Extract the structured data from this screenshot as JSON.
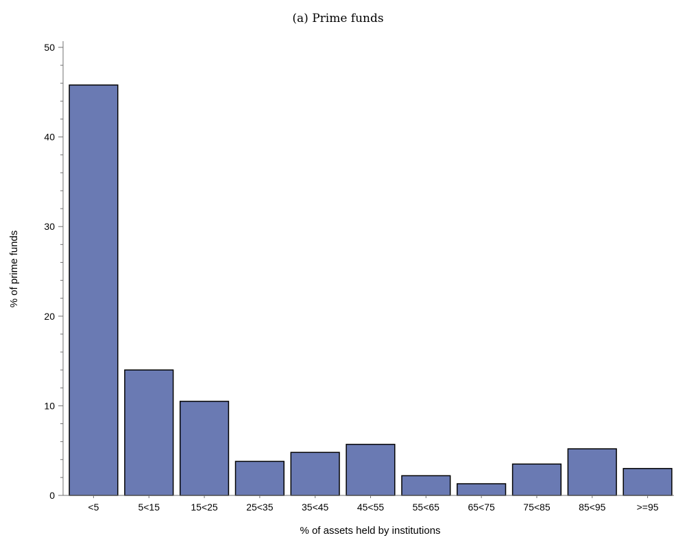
{
  "chart_data": {
    "type": "bar",
    "title": "(a) Prime funds",
    "xlabel": "%  of assets held by institutions",
    "ylabel": "% of prime funds",
    "categories": [
      "<5",
      "5<15",
      "15<25",
      "25<35",
      "35<45",
      "45<55",
      "55<65",
      "65<75",
      "75<85",
      "85<95",
      ">=95"
    ],
    "values": [
      45.8,
      14.0,
      10.5,
      3.8,
      4.8,
      5.7,
      2.2,
      1.3,
      3.5,
      5.2,
      3.0
    ],
    "ylim": [
      0,
      50
    ],
    "yticks": [
      0,
      10,
      20,
      30,
      40,
      50
    ],
    "grid": false,
    "colors": {
      "bar": "#6a7ab3",
      "bar_edge": "#000000",
      "axis": "#6f6f6f"
    }
  }
}
